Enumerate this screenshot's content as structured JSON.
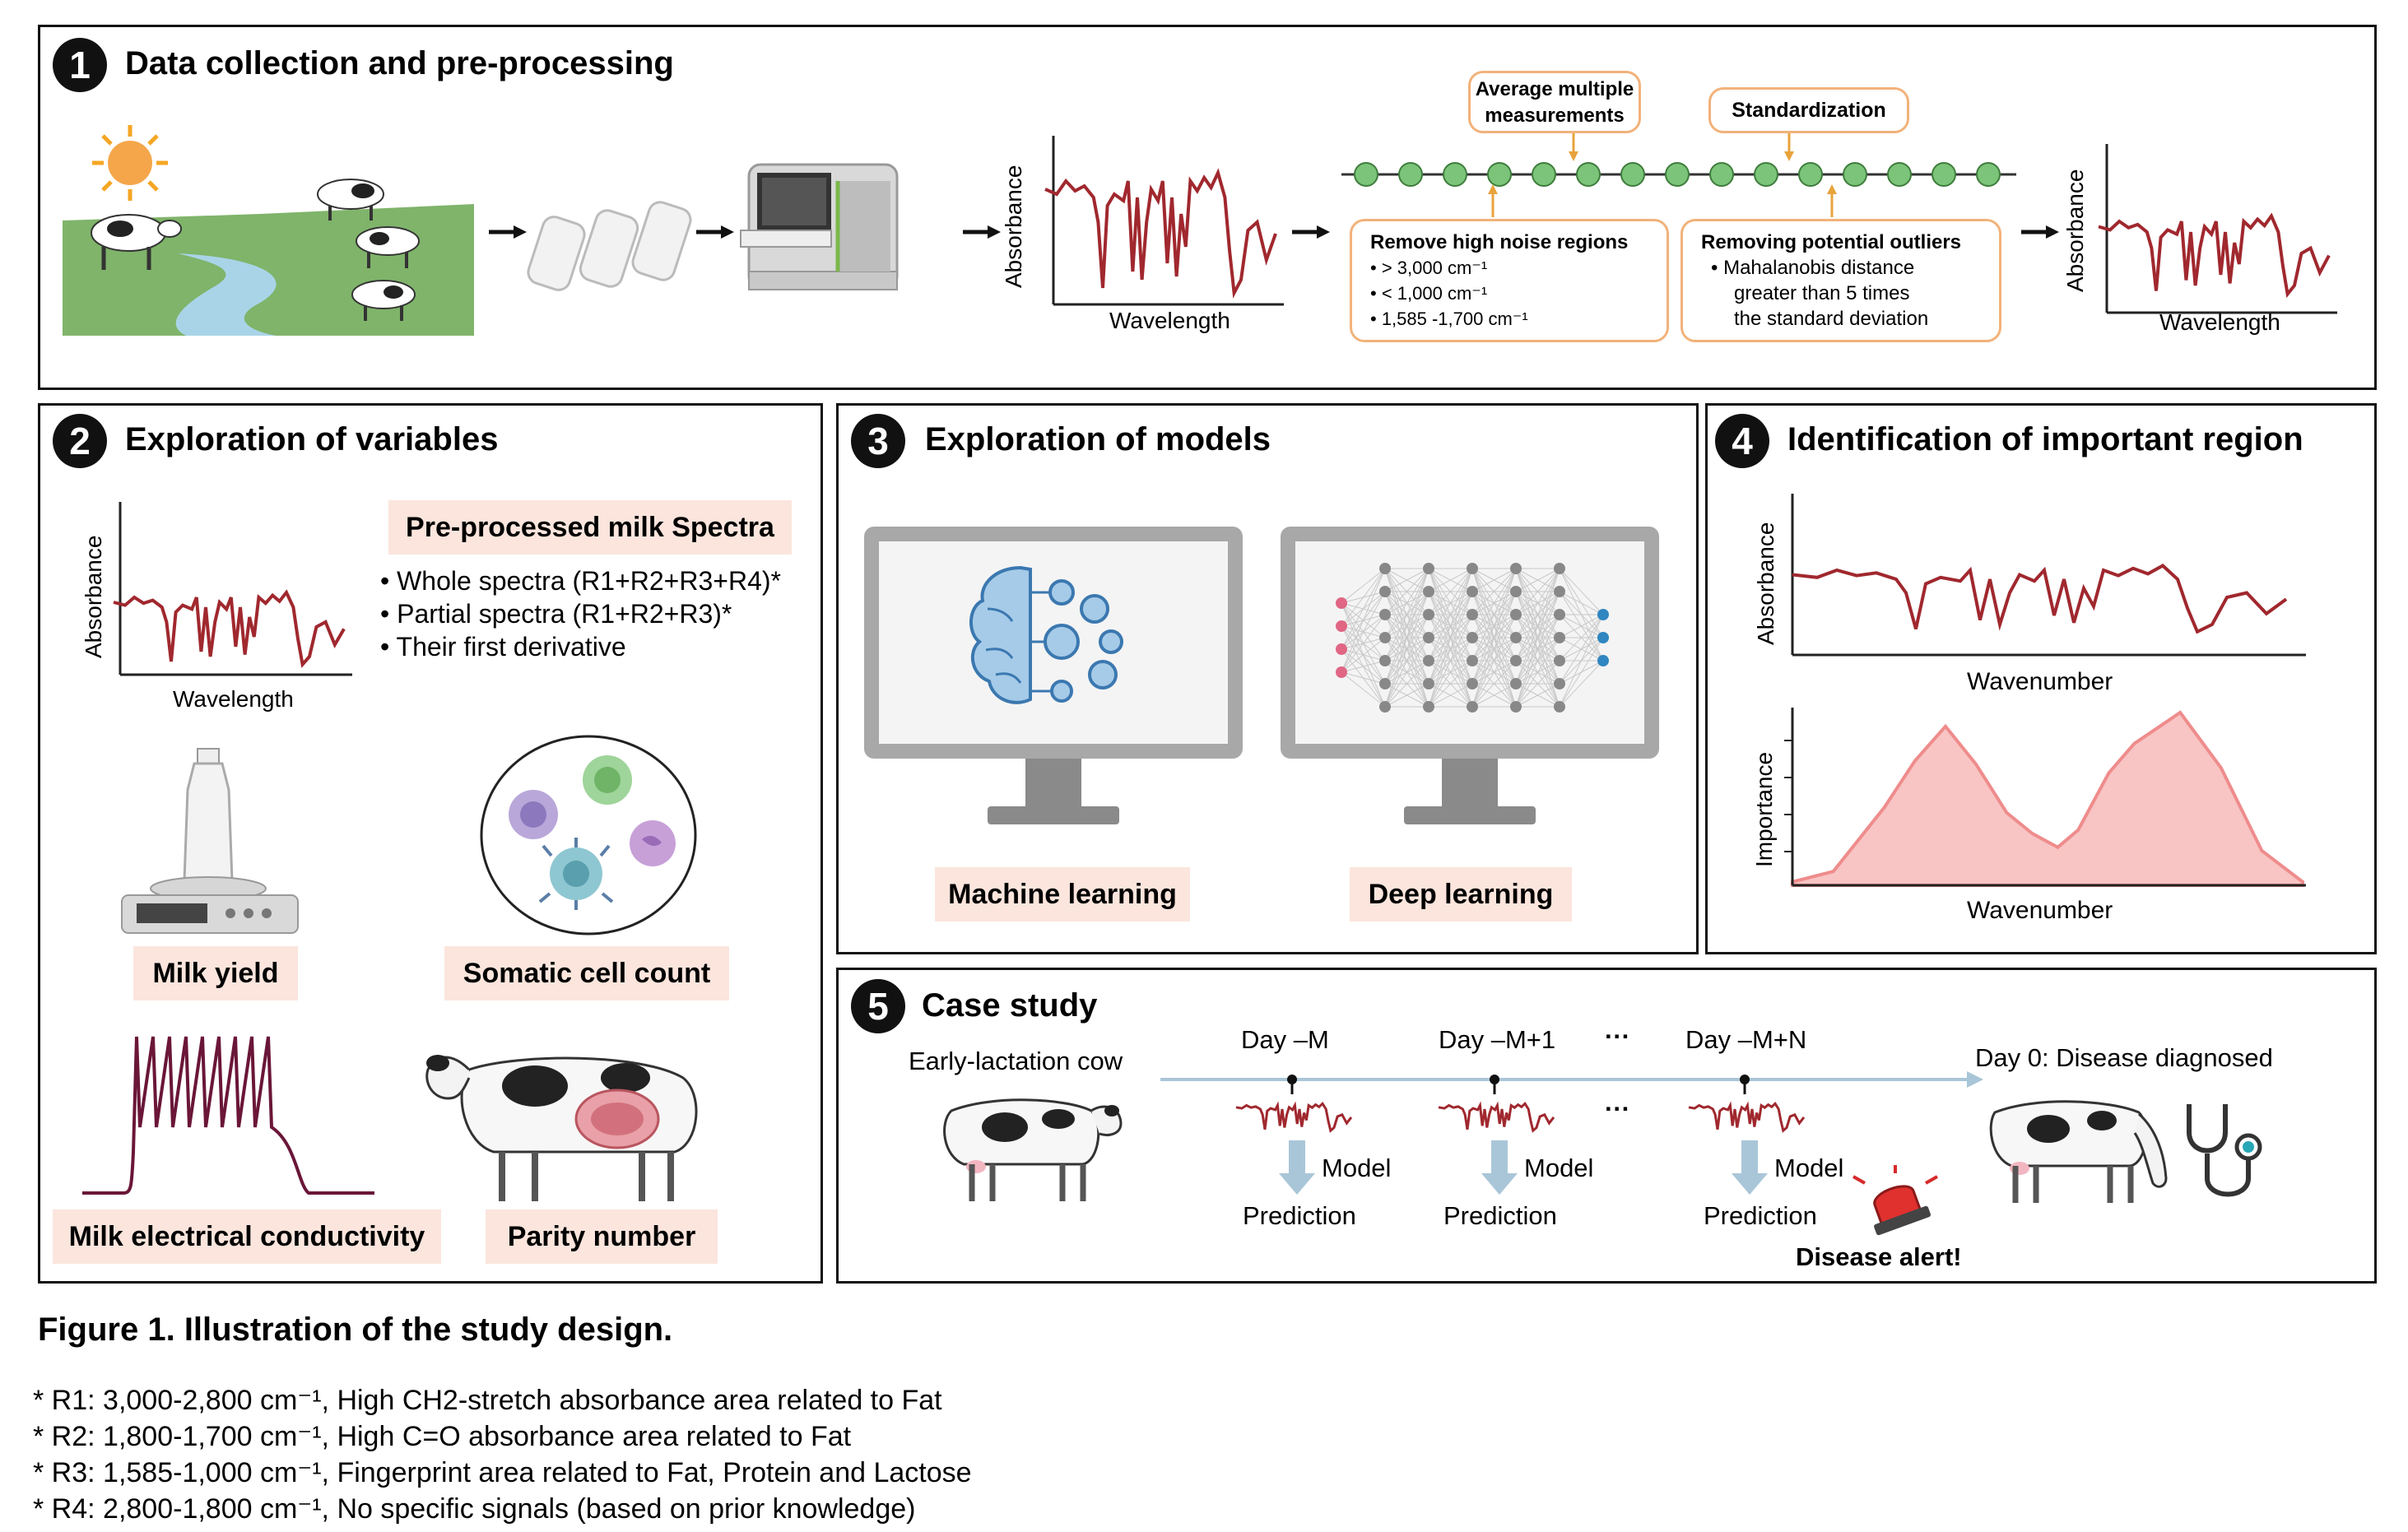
{
  "panels": {
    "p1": {
      "number": "1",
      "title": "Data collection and pre-processing"
    },
    "p2": {
      "number": "2",
      "title": "Exploration of variables"
    },
    "p3": {
      "number": "3",
      "title": "Exploration of models"
    },
    "p4": {
      "number": "4",
      "title": "Identification of important region"
    },
    "p5": {
      "number": "5",
      "title": "Case study"
    }
  },
  "p1": {
    "plot1": {
      "ylabel": "Absorbance",
      "xlabel": "Wavelength"
    },
    "plot2": {
      "ylabel": "Absorbance",
      "xlabel": "Wavelength"
    },
    "avg_label_1": "Average multiple",
    "avg_label_2": "measurements",
    "std_label": "Standardization",
    "noise": {
      "title": "Remove high noise regions",
      "items": [
        "• > 3,000 cm⁻¹",
        "• < 1,000 cm⁻¹",
        "• 1,585 -1,700 cm⁻¹"
      ]
    },
    "outliers": {
      "title": "Removing potential outliers",
      "lines": [
        "•  Mahalanobis distance",
        "greater  than  5  times",
        "the standard deviation"
      ]
    },
    "dot_count": 15
  },
  "p2": {
    "plot": {
      "ylabel": "Absorbance",
      "xlabel": "Wavelength"
    },
    "spectra_title": "Pre-processed milk Spectra",
    "spectra_items": [
      "• Whole spectra (R1+R2+R3+R4)*",
      "• Partial spectra (R1+R2+R3)*",
      "• Their first derivative"
    ],
    "milk_yield": "Milk yield",
    "scc": "Somatic cell count",
    "conductivity": "Milk electrical conductivity",
    "parity": "Parity number"
  },
  "p3": {
    "ml": "Machine learning",
    "dl": "Deep learning"
  },
  "p4": {
    "plot1": {
      "ylabel": "Absorbance",
      "xlabel": "Wavenumber"
    },
    "plot2": {
      "ylabel": "Importance",
      "xlabel": "Wavenumber"
    }
  },
  "p5": {
    "cow_label": "Early-lactation cow",
    "days": [
      "Day –M",
      "Day –M+1",
      "Day –M+N"
    ],
    "ellipsis": "···",
    "model": "Model",
    "prediction": "Prediction",
    "day0": "Day 0: Disease diagnosed",
    "alert": "Disease alert!"
  },
  "caption": "Figure 1. Illustration of the study design.",
  "footnotes": [
    "* R1: 3,000-2,800 cm⁻¹, High CH2-stretch absorbance area related to Fat",
    "* R2: 1,800-1,700 cm⁻¹, High C=O absorbance area related to Fat",
    "* R3: 1,585-1,000 cm⁻¹, Fingerprint area related to Fat, Protein and Lactose",
    "* R4: 2,800-1,800 cm⁻¹, No specific signals (based on prior knowledge)"
  ],
  "colors": {
    "spectrum": "#a0282e",
    "dot": "#7cc47a",
    "orange": "#f2b27a",
    "pink_box": "#fbe5dd",
    "importance_fill": "#f8c4c4",
    "arrow_blue": "#a9c6d8"
  },
  "icons": [
    "sun-icon",
    "pasture-icon",
    "milk-bottles-icon",
    "spectrometer-icon",
    "scale-icon",
    "cells-icon",
    "cow-icon",
    "brain-gears-icon",
    "neural-net-icon",
    "monitor-icon",
    "alarm-icon",
    "stethoscope-icon"
  ]
}
